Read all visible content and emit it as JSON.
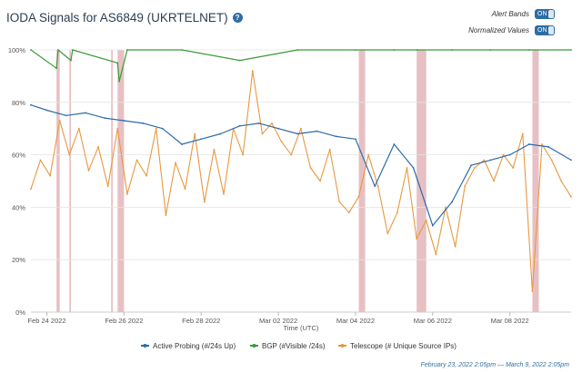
{
  "header": {
    "title": "IODA Signals for AS6849 (UKRTELNET)",
    "help_icon": "?"
  },
  "toggles": [
    {
      "label": "Alert Bands",
      "state": "ON"
    },
    {
      "label": "Normalized Values",
      "state": "ON"
    }
  ],
  "footer": {
    "range": "February 23, 2022 2:05pm — March 9, 2022 2:05pm"
  },
  "colors": {
    "active": "#2c6bab",
    "bgp": "#3c9a37",
    "telescope": "#e8983f",
    "band": "#e7c0c4"
  },
  "chart_data": {
    "type": "line",
    "xlabel": "Time (UTC)",
    "ylabel": "",
    "ylim": [
      0,
      100
    ],
    "xlim": [
      "2022-02-23 14:05",
      "2022-03-09 14:05"
    ],
    "y_ticks": [
      "0%",
      "20%",
      "40%",
      "60%",
      "80%",
      "100%"
    ],
    "x_ticks": [
      "Feb 24 2022",
      "Feb 26 2022",
      "Feb 28 2022",
      "Mar 02 2022",
      "Mar 04 2022",
      "Mar 06 2022",
      "Mar 08 2022"
    ],
    "alert_bands": [
      {
        "start": "2022-02-24 06:00",
        "end": "2022-02-24 08:00"
      },
      {
        "start": "2022-02-24 14:00",
        "end": "2022-02-24 15:00"
      },
      {
        "start": "2022-02-25 16:00",
        "end": "2022-02-25 17:00"
      },
      {
        "start": "2022-02-25 20:00",
        "end": "2022-02-26 00:00"
      },
      {
        "start": "2022-03-04 02:00",
        "end": "2022-03-04 06:00"
      },
      {
        "start": "2022-03-05 14:00",
        "end": "2022-03-05 20:00"
      },
      {
        "start": "2022-03-08 14:00",
        "end": "2022-03-08 18:00"
      }
    ],
    "series": [
      {
        "name": "Active Probing (#/24s Up)",
        "x": [
          "2022-02-23 14:05",
          "2022-02-24 00:00",
          "2022-02-24 12:00",
          "2022-02-25 00:00",
          "2022-02-25 12:00",
          "2022-02-26 00:00",
          "2022-02-26 12:00",
          "2022-02-27 00:00",
          "2022-02-27 12:00",
          "2022-02-28 00:00",
          "2022-02-28 12:00",
          "2022-03-01 00:00",
          "2022-03-01 12:00",
          "2022-03-02 00:00",
          "2022-03-02 12:00",
          "2022-03-03 00:00",
          "2022-03-03 12:00",
          "2022-03-04 00:00",
          "2022-03-04 12:00",
          "2022-03-05 00:00",
          "2022-03-05 12:00",
          "2022-03-06 00:00",
          "2022-03-06 12:00",
          "2022-03-07 00:00",
          "2022-03-07 12:00",
          "2022-03-08 00:00",
          "2022-03-08 12:00",
          "2022-03-09 00:00",
          "2022-03-09 14:05"
        ],
        "values": [
          79,
          77,
          75,
          76,
          74,
          73,
          72,
          70,
          64,
          66,
          68,
          71,
          72,
          70,
          68,
          69,
          67,
          66,
          48,
          64,
          55,
          33,
          42,
          56,
          58,
          60,
          64,
          63,
          58
        ]
      },
      {
        "name": "BGP (#Visible /24s)",
        "x": [
          "2022-02-23 14:05",
          "2022-02-24 06:00",
          "2022-02-24 07:00",
          "2022-02-24 15:00",
          "2022-02-24 16:00",
          "2022-02-25 20:00",
          "2022-02-25 21:00",
          "2022-02-26 02:00",
          "2022-02-27 12:00",
          "2022-03-01 00:00",
          "2022-03-02 12:00",
          "2022-03-04 00:00",
          "2022-03-05 00:00",
          "2022-03-05 14:00",
          "2022-03-06 12:00",
          "2022-03-07 12:00",
          "2022-03-08 12:00",
          "2022-03-09 14:05"
        ],
        "values": [
          100,
          93,
          100,
          96,
          100,
          95,
          88,
          100,
          100,
          96,
          100,
          100,
          100,
          100,
          100,
          100,
          100,
          100
        ]
      },
      {
        "name": "Telescope (# Unique Source IPs)",
        "x": [
          "2022-02-23 14:05",
          "2022-02-23 20:00",
          "2022-02-24 02:00",
          "2022-02-24 08:00",
          "2022-02-24 14:00",
          "2022-02-24 20:00",
          "2022-02-25 02:00",
          "2022-02-25 08:00",
          "2022-02-25 14:00",
          "2022-02-25 20:00",
          "2022-02-26 02:00",
          "2022-02-26 08:00",
          "2022-02-26 14:00",
          "2022-02-26 20:00",
          "2022-02-27 02:00",
          "2022-02-27 08:00",
          "2022-02-27 14:00",
          "2022-02-27 20:00",
          "2022-02-28 02:00",
          "2022-02-28 08:00",
          "2022-02-28 14:00",
          "2022-02-28 20:00",
          "2022-03-01 02:00",
          "2022-03-01 08:00",
          "2022-03-01 14:00",
          "2022-03-01 20:00",
          "2022-03-02 02:00",
          "2022-03-02 08:00",
          "2022-03-02 14:00",
          "2022-03-02 20:00",
          "2022-03-03 02:00",
          "2022-03-03 08:00",
          "2022-03-03 14:00",
          "2022-03-03 20:00",
          "2022-03-04 02:00",
          "2022-03-04 08:00",
          "2022-03-04 14:00",
          "2022-03-04 20:00",
          "2022-03-05 02:00",
          "2022-03-05 08:00",
          "2022-03-05 14:00",
          "2022-03-05 20:00",
          "2022-03-06 02:00",
          "2022-03-06 08:00",
          "2022-03-06 14:00",
          "2022-03-06 20:00",
          "2022-03-07 02:00",
          "2022-03-07 08:00",
          "2022-03-07 14:00",
          "2022-03-07 20:00",
          "2022-03-08 02:00",
          "2022-03-08 08:00",
          "2022-03-08 14:00",
          "2022-03-08 20:00",
          "2022-03-09 02:00",
          "2022-03-09 08:00",
          "2022-03-09 14:05"
        ],
        "values": [
          47,
          58,
          52,
          73,
          60,
          70,
          54,
          63,
          48,
          70,
          45,
          58,
          52,
          70,
          37,
          57,
          47,
          68,
          42,
          62,
          45,
          70,
          60,
          92,
          68,
          72,
          65,
          60,
          70,
          55,
          50,
          62,
          42,
          38,
          44,
          60,
          48,
          30,
          38,
          55,
          28,
          35,
          22,
          40,
          25,
          48,
          55,
          58,
          50,
          60,
          55,
          68,
          8,
          64,
          58,
          50,
          44
        ]
      }
    ],
    "legend": [
      "Active Probing (#/24s Up)",
      "BGP (#Visible /24s)",
      "Telescope (# Unique Source IPs)"
    ],
    "legend_position": "bottom",
    "grid": true
  }
}
